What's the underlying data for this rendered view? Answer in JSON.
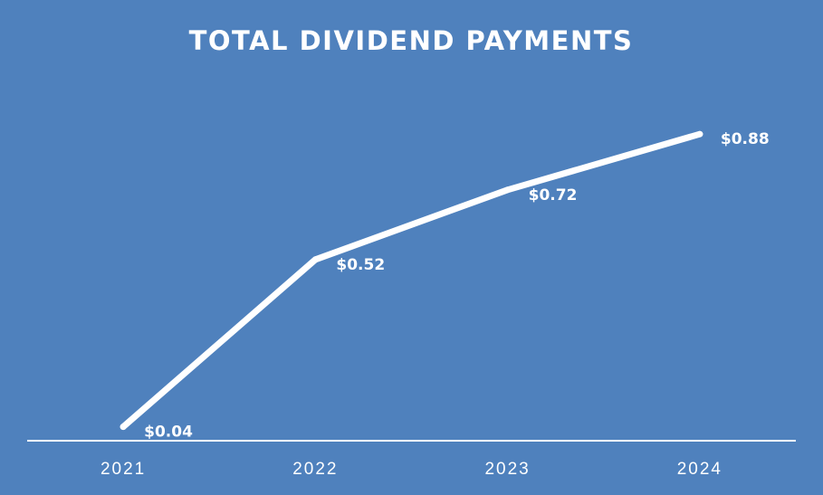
{
  "colors": {
    "background": "#4f81bd",
    "line": "#ffffff",
    "text": "#ffffff",
    "axis": "#ffffff"
  },
  "chart_data": {
    "type": "line",
    "title": "TOTAL DIVIDEND PAYMENTS",
    "xlabel": "",
    "ylabel": "",
    "categories": [
      "2021",
      "2022",
      "2023",
      "2024"
    ],
    "series": [
      {
        "values": [
          0.04,
          0.52,
          0.72,
          0.88
        ],
        "data_labels": [
          "$0.04",
          "$0.52",
          "$0.72",
          "$0.88"
        ]
      }
    ],
    "ylim": [
      0,
      1.0
    ],
    "grid": false,
    "legend": "none"
  }
}
